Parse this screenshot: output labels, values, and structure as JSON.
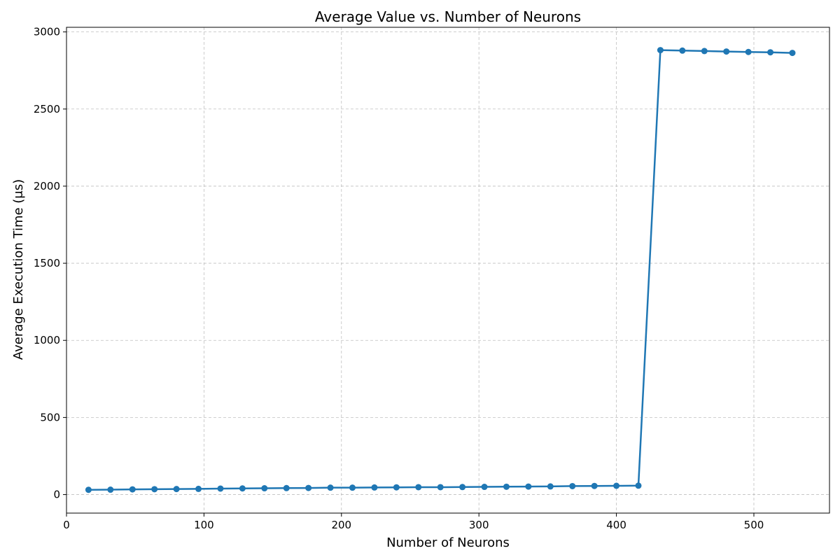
{
  "chart_data": {
    "type": "line",
    "title": "Average Value vs. Number of Neurons",
    "xlabel": "Number of Neurons",
    "ylabel": "Average Execution Time (μs)",
    "xlim": [
      0,
      555
    ],
    "ylim": [
      -120,
      3030
    ],
    "xticks": [
      0,
      100,
      200,
      300,
      400,
      500
    ],
    "yticks": [
      0,
      500,
      1000,
      1500,
      2000,
      2500,
      3000
    ],
    "grid": true,
    "line_color": "#1f77b4",
    "series": [
      {
        "x": [
          16,
          32,
          48,
          64,
          80,
          96,
          112,
          128,
          144,
          160,
          176,
          192,
          208,
          224,
          240,
          256,
          272,
          288,
          304,
          320,
          336,
          352,
          368,
          384,
          400,
          416,
          432,
          448,
          464,
          480,
          496,
          512,
          528
        ],
        "values": [
          31,
          32,
          34,
          35,
          36,
          37,
          39,
          40,
          41,
          42,
          43,
          45,
          45,
          46,
          47,
          48,
          48,
          49,
          50,
          51,
          52,
          53,
          55,
          56,
          57,
          58,
          2882,
          2879,
          2876,
          2873,
          2870,
          2868,
          2864
        ]
      }
    ]
  }
}
